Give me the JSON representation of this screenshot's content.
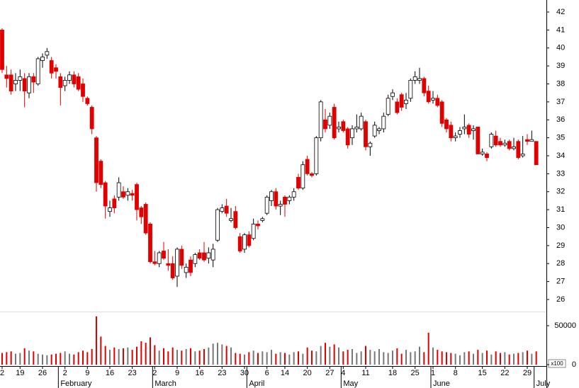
{
  "chart_data": {
    "type": "candlestick",
    "ylim": [
      25.33,
      42.67
    ],
    "yticks": [
      26,
      27,
      28,
      29,
      30,
      31,
      32,
      33,
      34,
      35,
      36,
      37,
      38,
      39,
      40,
      41,
      42
    ],
    "y2lim": [
      0,
      68000
    ],
    "y2ticks": [
      0,
      50000
    ],
    "y2_unit_label": "x100",
    "up_color": "#ffffff",
    "down_color": "#e00000",
    "volume_up_color": "#777777",
    "volume_down_color": "#e00000",
    "categories": [
      "2",
      null,
      null,
      null,
      "19",
      null,
      null,
      null,
      null,
      "26",
      null,
      null,
      null,
      null,
      "2",
      null,
      null,
      null,
      null,
      "9",
      null,
      null,
      null,
      null,
      "16",
      null,
      null,
      null,
      null,
      "23",
      null,
      null,
      null,
      null,
      "2",
      null,
      null,
      null,
      null,
      "9",
      null,
      null,
      null,
      null,
      "16",
      null,
      null,
      null,
      null,
      "23",
      null,
      null,
      null,
      null,
      "30",
      null,
      null,
      null,
      null,
      "6",
      null,
      null,
      null,
      "14",
      null,
      null,
      null,
      null,
      "20",
      null,
      null,
      null,
      null,
      "27",
      null,
      null,
      "4",
      null,
      null,
      null,
      null,
      "11",
      null,
      null,
      null,
      null,
      null,
      "18",
      null,
      null,
      null,
      null,
      "25",
      null,
      null,
      null,
      "1",
      null,
      null,
      null,
      null,
      "8",
      null,
      null,
      null,
      null,
      null,
      "15",
      null,
      null,
      null,
      null,
      "22",
      null,
      null,
      null,
      null,
      "29",
      null,
      null
    ],
    "months": [
      null,
      null,
      null,
      null,
      null,
      null,
      null,
      null,
      null,
      null,
      null,
      null,
      null,
      "February",
      null,
      null,
      null,
      null,
      null,
      null,
      null,
      null,
      null,
      null,
      null,
      null,
      null,
      null,
      null,
      null,
      null,
      null,
      null,
      null,
      "March",
      null,
      null,
      null,
      null,
      null,
      null,
      null,
      null,
      null,
      null,
      null,
      null,
      null,
      null,
      null,
      null,
      null,
      null,
      null,
      null,
      "April",
      null,
      null,
      null,
      null,
      null,
      null,
      null,
      null,
      null,
      null,
      null,
      null,
      null,
      null,
      null,
      null,
      null,
      null,
      null,
      null,
      "May",
      null,
      null,
      null,
      null,
      null,
      null,
      null,
      null,
      null,
      null,
      null,
      null,
      null,
      null,
      null,
      null,
      null,
      null,
      null,
      "June",
      null,
      null,
      null,
      null,
      null,
      null,
      null,
      null,
      null,
      null,
      null,
      null,
      null,
      null,
      null,
      null,
      null,
      null,
      null,
      null,
      null,
      null,
      "July"
    ],
    "open": [
      41,
      38.5,
      38.5,
      38,
      38.2,
      38.3,
      37.5,
      38.4,
      38,
      39.3,
      39.6,
      39.3,
      38.9,
      38.4,
      37.9,
      38.2,
      38.5,
      38.4,
      38,
      37.2,
      36.7,
      35,
      33.7,
      32.5,
      30.9,
      31.6,
      31.7,
      32,
      31.8,
      31.9,
      32.4,
      31.1,
      31.3,
      30.2,
      28.1,
      28,
      28.7,
      28,
      28,
      27.3,
      28.8,
      27.5,
      28.2,
      28,
      28.6,
      28.6,
      28.3,
      28.2,
      29.3,
      30.9,
      31.2,
      30.4,
      30.9,
      29.5,
      28.8,
      29.6,
      29.4,
      30.2,
      30.4,
      30.8,
      31.5,
      32,
      31.2,
      31.7,
      31.5,
      31.7,
      32.8,
      32.2,
      33.8,
      33,
      33,
      35,
      36,
      35.7,
      36.7,
      35.5,
      35.9,
      35.5,
      35,
      35.5,
      35.5,
      35.9,
      34.5,
      35.1,
      35.4,
      35.5,
      36.3,
      37.3,
      37,
      37.4,
      36.9,
      37.2,
      38.2,
      38.2,
      38.3,
      37.6,
      37.1,
      37.2,
      37,
      36,
      35.7,
      35,
      35.2,
      35.5,
      35.7,
      35.4,
      35.6,
      34.1,
      34.1,
      34.5,
      35.1,
      34.8,
      34.6,
      34.8,
      34.4,
      34.8,
      34,
      34.9,
      34.8,
      34.8
    ],
    "high": [
      41.1,
      39,
      38.8,
      38.6,
      38.8,
      38.6,
      38.6,
      38.6,
      39.5,
      39.7,
      40,
      39.5,
      39.1,
      38.6,
      38.4,
      38.7,
      38.7,
      38.6,
      38.3,
      37.3,
      36.8,
      35.1,
      33.8,
      32.6,
      31.5,
      31.8,
      32.8,
      32.3,
      32.2,
      32.1,
      32.5,
      31.2,
      31.4,
      30.3,
      28.7,
      28.7,
      29.2,
      28.8,
      28.4,
      28.9,
      29,
      28,
      28.4,
      28.6,
      28.8,
      29.2,
      28.9,
      29.1,
      31.1,
      31.3,
      31.6,
      31.1,
      31.2,
      29.7,
      29.7,
      29.8,
      30.5,
      30.4,
      30.6,
      31.8,
      32.1,
      32.2,
      31.5,
      31.8,
      31.8,
      32.2,
      33,
      33.7,
      34,
      33.1,
      35.1,
      37.1,
      36.6,
      36.4,
      36.9,
      35.9,
      36,
      35.6,
      35.7,
      36.3,
      36.4,
      36,
      34.8,
      35.9,
      35.6,
      36.4,
      37.4,
      37.7,
      37.2,
      37.5,
      37.5,
      38.3,
      38.7,
      38.9,
      38.4,
      37.9,
      37.6,
      37.4,
      37.1,
      36.1,
      35.9,
      35.3,
      35.6,
      36.3,
      35.8,
      35.7,
      35.6,
      34.4,
      34.2,
      35.3,
      35.4,
      35,
      34.9,
      34.9,
      35,
      34.9,
      35.1,
      35.2,
      35.4,
      34.8
    ],
    "low": [
      38.6,
      37.8,
      37.4,
      37.6,
      37.6,
      36.7,
      37.2,
      37.5,
      37.9,
      38.9,
      39.4,
      38.3,
      38.3,
      36.8,
      37.6,
      38,
      37.8,
      37.6,
      37,
      36.8,
      35.2,
      32,
      32.2,
      30.5,
      30.6,
      30.8,
      31.5,
      31.6,
      31.5,
      31.5,
      30.4,
      30.2,
      29.6,
      28,
      27.9,
      27.8,
      28.2,
      27.6,
      27.1,
      26.7,
      27.7,
      27.2,
      27.3,
      27.8,
      28.2,
      28.1,
      28,
      27.8,
      29.2,
      30.8,
      30.6,
      30.3,
      29.9,
      28.6,
      28.6,
      28.9,
      29.3,
      29.9,
      30.3,
      30.7,
      31.2,
      31,
      30.7,
      30.6,
      31.3,
      31.5,
      32.1,
      32.1,
      32.9,
      32.8,
      32.9,
      34.8,
      35.3,
      35.5,
      34.9,
      35.3,
      35.3,
      34.4,
      34.6,
      35.3,
      35.4,
      34.3,
      34,
      35,
      35.2,
      35.3,
      36.2,
      37.1,
      36.3,
      36.5,
      36.6,
      37,
      38,
      38,
      37.3,
      36.9,
      36.9,
      36.7,
      35.6,
      35.3,
      34.8,
      34.8,
      35,
      35.2,
      35,
      34.9,
      34.1,
      34,
      33.7,
      34.4,
      34.5,
      34.5,
      34.5,
      34.3,
      34.3,
      33.8,
      33.9,
      34.6,
      34.8,
      33.5
    ],
    "close": [
      38.8,
      38.3,
      37.6,
      38.2,
      38.4,
      37.6,
      38.4,
      38.1,
      39.4,
      39.5,
      39.8,
      38.6,
      38.7,
      37.8,
      38.2,
      38.5,
      38,
      37.7,
      37.3,
      36.9,
      35.5,
      32.5,
      32.4,
      31.2,
      31.1,
      31.1,
      32.5,
      31.7,
      32,
      31.8,
      31,
      30.6,
      29.7,
      28.1,
      28,
      28.6,
      28.3,
      27.9,
      27.2,
      28.8,
      27.9,
      27.8,
      27.5,
      28.5,
      28.3,
      28.2,
      28.6,
      28.8,
      31,
      31.1,
      30.8,
      30.5,
      30,
      28.7,
      29.6,
      29,
      30.2,
      30.1,
      30.5,
      31.7,
      32,
      31.2,
      31.3,
      31.3,
      31.7,
      32,
      32.2,
      33.5,
      33,
      32.9,
      35,
      37,
      35.5,
      36.2,
      35,
      35.6,
      35.4,
      34.6,
      35.5,
      35.6,
      36.2,
      34.5,
      34.7,
      35.7,
      35.5,
      36.2,
      37.2,
      37.5,
      36.4,
      36.7,
      37.1,
      38.2,
      38.4,
      38.3,
      37.5,
      37,
      37.2,
      36.8,
      35.8,
      35.5,
      35,
      35.1,
      35.4,
      35.6,
      35.2,
      35.5,
      34.1,
      34.2,
      33.9,
      35.2,
      34.6,
      34.6,
      34.7,
      34.4,
      34.5,
      33.9,
      34.1,
      34.8,
      34.9,
      33.5
    ],
    "volume": [
      15000,
      16000,
      17000,
      14000,
      15000,
      21000,
      18000,
      17000,
      14000,
      13000,
      12000,
      13000,
      14000,
      15000,
      17000,
      14000,
      13000,
      16000,
      18000,
      16000,
      20000,
      62000,
      36000,
      24000,
      19000,
      22000,
      20000,
      21000,
      22000,
      19000,
      23000,
      30000,
      28000,
      35000,
      25000,
      18000,
      21000,
      17000,
      22000,
      19000,
      18000,
      20000,
      21000,
      17000,
      18000,
      20000,
      22000,
      27000,
      28000,
      26000,
      24000,
      22000,
      15000,
      14000,
      13000,
      16000,
      18000,
      15000,
      17000,
      16000,
      19000,
      14000,
      16000,
      15000,
      13000,
      16000,
      17000,
      14000,
      22000,
      18000,
      17000,
      24000,
      28000,
      23000,
      26000,
      22000,
      17000,
      19000,
      20000,
      15000,
      17000,
      24000,
      19000,
      17000,
      20000,
      16000,
      15000,
      18000,
      21000,
      14000,
      19000,
      16000,
      17000,
      23000,
      16000,
      41000,
      22000,
      19000,
      17000,
      16000,
      15000,
      14000,
      12000,
      16000,
      17000,
      14000,
      19000,
      15000,
      18000,
      13000,
      17000,
      15000,
      16000,
      13000,
      14000,
      15000,
      16000,
      18000,
      14000,
      17000
    ]
  }
}
